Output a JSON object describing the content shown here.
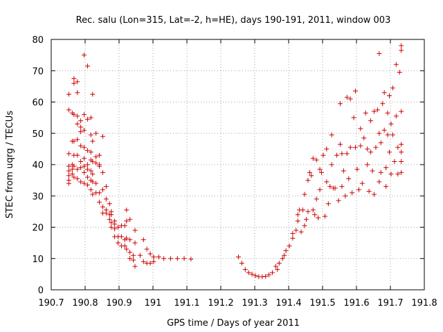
{
  "chart_data": {
    "type": "scatter",
    "title": "Rec. salu (Lon=315, Lat=-2, h=HE), days 190-191, 2011, window 003",
    "xlabel": "GPS time / Days of year 2011",
    "ylabel": "STEC from uqrg / TECUs",
    "xlim": [
      190.7,
      191.8
    ],
    "ylim": [
      0,
      80
    ],
    "xticks": [
      "190.7",
      "190.8",
      "190.9",
      "191",
      "191.1",
      "191.2",
      "191.3",
      "191.4",
      "191.5",
      "191.6",
      "191.7",
      "191.8"
    ],
    "yticks": [
      "0",
      "10",
      "20",
      "30",
      "40",
      "50",
      "60",
      "70",
      "80"
    ],
    "grid": true,
    "legend": "none",
    "marker": "plus",
    "color": "#cc0000",
    "series": [
      {
        "points": [
          [
            190.752,
            62.5
          ],
          [
            190.752,
            57.5
          ],
          [
            190.752,
            43.5
          ],
          [
            190.752,
            39.5
          ],
          [
            190.752,
            38
          ],
          [
            190.752,
            36.5
          ],
          [
            190.752,
            35
          ],
          [
            190.752,
            34
          ],
          [
            190.762,
            56.5
          ],
          [
            190.762,
            47.5
          ],
          [
            190.762,
            40
          ],
          [
            190.762,
            38.5
          ],
          [
            190.762,
            37
          ],
          [
            190.767,
            67.5
          ],
          [
            190.767,
            66
          ],
          [
            190.767,
            56
          ],
          [
            190.767,
            47.5
          ],
          [
            190.767,
            43
          ],
          [
            190.767,
            39.5
          ],
          [
            190.767,
            36
          ],
          [
            190.777,
            66.5
          ],
          [
            190.777,
            63
          ],
          [
            190.777,
            55.5
          ],
          [
            190.777,
            53
          ],
          [
            190.777,
            48
          ],
          [
            190.777,
            43
          ],
          [
            190.777,
            38.5
          ],
          [
            190.777,
            35.5
          ],
          [
            190.787,
            54
          ],
          [
            190.787,
            52
          ],
          [
            190.787,
            50.5
          ],
          [
            190.787,
            46
          ],
          [
            190.787,
            41
          ],
          [
            190.787,
            39
          ],
          [
            190.787,
            34.5
          ],
          [
            190.797,
            75
          ],
          [
            190.797,
            56
          ],
          [
            190.797,
            51
          ],
          [
            190.797,
            45.5
          ],
          [
            190.797,
            42
          ],
          [
            190.797,
            39.5
          ],
          [
            190.797,
            37.5
          ],
          [
            190.797,
            34
          ],
          [
            190.807,
            71.5
          ],
          [
            190.807,
            54.5
          ],
          [
            190.807,
            44.5
          ],
          [
            190.807,
            40
          ],
          [
            190.807,
            38.5
          ],
          [
            190.807,
            36
          ],
          [
            190.807,
            33.5
          ],
          [
            190.817,
            55
          ],
          [
            190.817,
            49.5
          ],
          [
            190.817,
            44
          ],
          [
            190.817,
            41.5
          ],
          [
            190.817,
            38
          ],
          [
            190.817,
            35
          ],
          [
            190.817,
            32
          ],
          [
            190.822,
            62.5
          ],
          [
            190.822,
            47.5
          ],
          [
            190.822,
            41
          ],
          [
            190.822,
            37
          ],
          [
            190.822,
            34.5
          ],
          [
            190.822,
            30.5
          ],
          [
            190.832,
            50
          ],
          [
            190.832,
            42.5
          ],
          [
            190.832,
            40.5
          ],
          [
            190.832,
            34
          ],
          [
            190.832,
            31
          ],
          [
            190.842,
            43
          ],
          [
            190.842,
            40
          ],
          [
            190.842,
            39.5
          ],
          [
            190.842,
            31
          ],
          [
            190.842,
            28
          ],
          [
            190.852,
            49
          ],
          [
            190.852,
            37.5
          ],
          [
            190.852,
            32
          ],
          [
            190.852,
            26.5
          ],
          [
            190.852,
            24.5
          ],
          [
            190.862,
            33
          ],
          [
            190.862,
            29
          ],
          [
            190.862,
            25.5
          ],
          [
            190.862,
            24.5
          ],
          [
            190.872,
            27.5
          ],
          [
            190.872,
            24
          ],
          [
            190.872,
            22.5
          ],
          [
            190.877,
            25
          ],
          [
            190.877,
            24
          ],
          [
            190.877,
            21.5
          ],
          [
            190.877,
            20
          ],
          [
            190.887,
            22
          ],
          [
            190.887,
            21
          ],
          [
            190.887,
            19.5
          ],
          [
            190.887,
            17
          ],
          [
            190.897,
            20
          ],
          [
            190.897,
            17
          ],
          [
            190.897,
            15
          ],
          [
            190.907,
            20.5
          ],
          [
            190.907,
            17
          ],
          [
            190.907,
            14
          ],
          [
            190.917,
            20.5
          ],
          [
            190.917,
            16
          ],
          [
            190.917,
            14
          ],
          [
            190.922,
            25.5
          ],
          [
            190.922,
            22
          ],
          [
            190.922,
            16.5
          ],
          [
            190.922,
            13
          ],
          [
            190.932,
            22.5
          ],
          [
            190.932,
            16
          ],
          [
            190.932,
            12
          ],
          [
            190.932,
            10
          ],
          [
            190.942,
            11
          ],
          [
            190.942,
            9.5
          ],
          [
            190.947,
            19
          ],
          [
            190.947,
            15
          ],
          [
            190.947,
            7.5
          ],
          [
            190.962,
            11
          ],
          [
            190.972,
            16
          ],
          [
            190.972,
            9
          ],
          [
            190.982,
            13
          ],
          [
            190.982,
            8.5
          ],
          [
            190.992,
            11.5
          ],
          [
            190.992,
            8.5
          ],
          [
            191.002,
            10.5
          ],
          [
            191.002,
            9
          ],
          [
            191.017,
            10.5
          ],
          [
            191.032,
            10
          ],
          [
            191.052,
            10
          ],
          [
            191.072,
            10
          ],
          [
            191.092,
            10
          ],
          [
            191.112,
            9.8
          ],
          [
            191.252,
            10.5
          ],
          [
            191.262,
            8.5
          ],
          [
            191.272,
            6.5
          ],
          [
            191.282,
            5.5
          ],
          [
            191.292,
            5
          ],
          [
            191.302,
            4.5
          ],
          [
            191.312,
            4.2
          ],
          [
            191.322,
            4.2
          ],
          [
            191.332,
            4.3
          ],
          [
            191.342,
            4.8
          ],
          [
            191.352,
            5.5
          ],
          [
            191.362,
            7.5
          ],
          [
            191.367,
            6.5
          ],
          [
            191.372,
            8.5
          ],
          [
            191.382,
            10
          ],
          [
            191.387,
            11
          ],
          [
            191.392,
            12.5
          ],
          [
            191.402,
            14
          ],
          [
            191.412,
            16.5
          ],
          [
            191.412,
            18
          ],
          [
            191.422,
            19
          ],
          [
            191.427,
            24
          ],
          [
            191.427,
            22
          ],
          [
            191.432,
            25.5
          ],
          [
            191.437,
            18.5
          ],
          [
            191.442,
            25.5
          ],
          [
            191.447,
            30.5
          ],
          [
            191.447,
            20.5
          ],
          [
            191.452,
            22.5
          ],
          [
            191.457,
            35
          ],
          [
            191.457,
            25
          ],
          [
            191.462,
            37.5
          ],
          [
            191.467,
            36.5
          ],
          [
            191.472,
            42
          ],
          [
            191.472,
            25.5
          ],
          [
            191.477,
            24
          ],
          [
            191.482,
            41.5
          ],
          [
            191.482,
            29
          ],
          [
            191.487,
            23
          ],
          [
            191.492,
            38.5
          ],
          [
            191.492,
            32
          ],
          [
            191.497,
            37.5
          ],
          [
            191.502,
            43
          ],
          [
            191.507,
            23.5
          ],
          [
            191.512,
            45
          ],
          [
            191.512,
            34.5
          ],
          [
            191.517,
            27.5
          ],
          [
            191.522,
            33
          ],
          [
            191.527,
            49.5
          ],
          [
            191.527,
            40
          ],
          [
            191.532,
            32.5
          ],
          [
            191.537,
            32.5
          ],
          [
            191.542,
            43
          ],
          [
            191.547,
            28.5
          ],
          [
            191.552,
            59.5
          ],
          [
            191.552,
            46.5
          ],
          [
            191.557,
            43.5
          ],
          [
            191.557,
            33
          ],
          [
            191.562,
            38
          ],
          [
            191.567,
            30
          ],
          [
            191.572,
            61.5
          ],
          [
            191.572,
            43.5
          ],
          [
            191.577,
            35.5
          ],
          [
            191.582,
            61
          ],
          [
            191.582,
            45.5
          ],
          [
            191.587,
            31
          ],
          [
            191.592,
            55
          ],
          [
            191.597,
            63.5
          ],
          [
            191.597,
            45.5
          ],
          [
            191.602,
            38.5
          ],
          [
            191.607,
            32
          ],
          [
            191.612,
            51.5
          ],
          [
            191.612,
            46
          ],
          [
            191.617,
            34
          ],
          [
            191.622,
            48.5
          ],
          [
            191.627,
            56.5
          ],
          [
            191.632,
            45
          ],
          [
            191.632,
            40
          ],
          [
            191.637,
            31.5
          ],
          [
            191.642,
            54
          ],
          [
            191.642,
            44
          ],
          [
            191.647,
            38
          ],
          [
            191.652,
            57
          ],
          [
            191.652,
            30.5
          ],
          [
            191.657,
            45.5
          ],
          [
            191.662,
            57.5
          ],
          [
            191.667,
            75.5
          ],
          [
            191.667,
            50
          ],
          [
            191.667,
            34.5
          ],
          [
            191.672,
            47
          ],
          [
            191.672,
            37.5
          ],
          [
            191.677,
            59.5
          ],
          [
            191.682,
            63
          ],
          [
            191.682,
            51
          ],
          [
            191.687,
            39
          ],
          [
            191.687,
            33
          ],
          [
            191.692,
            56.5
          ],
          [
            191.692,
            49.5
          ],
          [
            191.697,
            62
          ],
          [
            191.697,
            44
          ],
          [
            191.702,
            53
          ],
          [
            191.702,
            37
          ],
          [
            191.707,
            64.5
          ],
          [
            191.707,
            49.5
          ],
          [
            191.712,
            41
          ],
          [
            191.717,
            72
          ],
          [
            191.717,
            55.5
          ],
          [
            191.722,
            45.5
          ],
          [
            191.722,
            37
          ],
          [
            191.727,
            69.5
          ],
          [
            191.732,
            78
          ],
          [
            191.732,
            76.5
          ],
          [
            191.732,
            57
          ],
          [
            191.732,
            46.5
          ],
          [
            191.732,
            44
          ],
          [
            191.732,
            41
          ],
          [
            191.732,
            37.5
          ]
        ]
      }
    ]
  }
}
